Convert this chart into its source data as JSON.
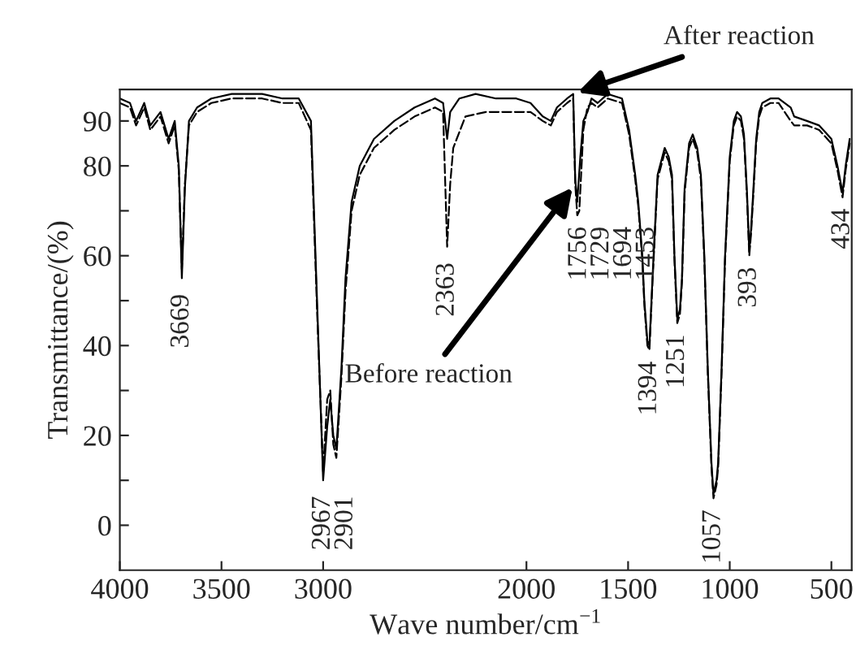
{
  "chart_data": {
    "type": "line",
    "xlabel": "Wave number/cm$^{−1}$",
    "ylabel": "Transmittance/(%)",
    "xlim": [
      4000,
      400
    ],
    "xticks": [
      4000,
      3500,
      3000,
      2000,
      1500,
      1000,
      500
    ],
    "ylim": [
      -10,
      97
    ],
    "yticks": [
      0,
      {
        "value": 10,
        "label": null
      },
      20,
      {
        "value": 30,
        "label": null
      },
      40,
      {
        "value": 50,
        "label": null
      },
      60,
      {
        "value": 70,
        "label": null
      },
      80,
      90
    ],
    "grid": false,
    "legend": false,
    "series": [
      {
        "color": "#000000",
        "line_style": "solid",
        "x": [
          4000,
          3950,
          3920,
          3880,
          3850,
          3800,
          3760,
          3730,
          3710,
          3695,
          3680,
          3660,
          3620,
          3550,
          3450,
          3300,
          3200,
          3120,
          3060,
          3030,
          3000,
          2980,
          2965,
          2950,
          2935,
          2910,
          2890,
          2860,
          2820,
          2750,
          2650,
          2550,
          2450,
          2410,
          2390,
          2375,
          2330,
          2250,
          2150,
          2050,
          1980,
          1920,
          1880,
          1850,
          1800,
          1770,
          1760,
          1750,
          1735,
          1720,
          1700,
          1680,
          1650,
          1600,
          1530,
          1495,
          1465,
          1450,
          1430,
          1420,
          1405,
          1395,
          1380,
          1355,
          1320,
          1300,
          1284,
          1272,
          1258,
          1245,
          1235,
          1222,
          1200,
          1182,
          1160,
          1142,
          1125,
          1108,
          1090,
          1080,
          1065,
          1057,
          1040,
          1023,
          1000,
          980,
          964,
          945,
          930,
          915,
          904,
          895,
          886,
          870,
          855,
          840,
          800,
          760,
          700,
          683,
          620,
          560,
          500,
          470,
          445,
          430,
          410
        ],
        "values": [
          95,
          94,
          90,
          94,
          89,
          92,
          86,
          90,
          80,
          55,
          75,
          90,
          93,
          95,
          96,
          96,
          95,
          95,
          90,
          50,
          10,
          22,
          28,
          20,
          17,
          35,
          55,
          72,
          80,
          86,
          90,
          93,
          95,
          94,
          86,
          92,
          95,
          96,
          95,
          95,
          94,
          91,
          90,
          93,
          95,
          96,
          77,
          72,
          82,
          90,
          92,
          95,
          94,
          96,
          95,
          88,
          78,
          72,
          60,
          50,
          41,
          40,
          55,
          78,
          84,
          82,
          78,
          60,
          46,
          48,
          55,
          75,
          85,
          87,
          84,
          78,
          60,
          35,
          14,
          7,
          10,
          14,
          35,
          60,
          82,
          90,
          92,
          91,
          87,
          74,
          61,
          66,
          73,
          86,
          92,
          94,
          95,
          95,
          93,
          91,
          90,
          89,
          86,
          80,
          74,
          80,
          86
        ]
      },
      {
        "color": "#000000",
        "line_style": "dashed",
        "x": [
          4000,
          3950,
          3920,
          3880,
          3850,
          3800,
          3760,
          3730,
          3710,
          3695,
          3680,
          3660,
          3620,
          3550,
          3450,
          3300,
          3200,
          3120,
          3060,
          3030,
          3000,
          2980,
          2965,
          2950,
          2935,
          2910,
          2890,
          2860,
          2820,
          2750,
          2650,
          2550,
          2450,
          2410,
          2390,
          2375,
          2360,
          2300,
          2200,
          2050,
          1980,
          1920,
          1880,
          1850,
          1800,
          1770,
          1760,
          1750,
          1740,
          1720,
          1700,
          1680,
          1650,
          1600,
          1530,
          1495,
          1465,
          1450,
          1430,
          1420,
          1405,
          1395,
          1380,
          1355,
          1320,
          1300,
          1284,
          1272,
          1258,
          1245,
          1235,
          1222,
          1200,
          1182,
          1160,
          1142,
          1125,
          1108,
          1090,
          1080,
          1065,
          1057,
          1040,
          1023,
          1000,
          980,
          964,
          945,
          930,
          915,
          904,
          895,
          886,
          870,
          855,
          840,
          800,
          760,
          700,
          683,
          620,
          560,
          500,
          470,
          445,
          430,
          410
        ],
        "values": [
          94,
          93,
          89,
          93,
          88,
          91,
          85,
          89,
          79,
          57,
          76,
          89,
          92,
          94,
          95,
          95,
          94,
          94,
          88,
          48,
          12,
          28,
          30,
          18,
          15,
          33,
          52,
          70,
          78,
          84,
          88,
          91,
          93,
          92,
          62,
          76,
          84,
          91,
          92,
          92,
          92,
          90,
          89,
          92,
          94,
          95,
          76,
          69,
          70,
          88,
          93,
          94,
          93,
          95,
          94,
          87,
          77,
          71,
          59,
          49,
          40,
          39,
          54,
          77,
          83,
          81,
          77,
          59,
          45,
          47,
          54,
          74,
          84,
          86,
          83,
          77,
          59,
          34,
          13,
          6,
          9,
          13,
          34,
          59,
          81,
          89,
          91,
          90,
          86,
          73,
          60,
          65,
          72,
          85,
          91,
          93,
          94,
          94,
          90,
          89,
          89,
          88,
          85,
          79,
          73,
          79,
          85
        ]
      }
    ],
    "annotations": [
      {
        "text": "After reaction",
        "x": 1770,
        "y": 96
      },
      {
        "text": "Before reaction",
        "x": 1760,
        "y": 76
      },
      {
        "text": "3669",
        "x": 3695,
        "y": 55
      },
      {
        "text": "2967",
        "x": 3000,
        "y": 10
      },
      "2901",
      {
        "text": "2363",
        "x": 2390,
        "y": 62
      },
      {
        "text": "1756",
        "x": 1740,
        "y": 70
      },
      "1729",
      "1694",
      "1453",
      {
        "text": "1394",
        "x": 1395,
        "y": 40
      },
      {
        "text": "1251",
        "x": 1258,
        "y": 46
      },
      {
        "text": "1057",
        "x": 1080,
        "y": 7
      },
      {
        "text": "393",
        "x": 904,
        "y": 61
      },
      {
        "text": "434",
        "x": 445,
        "y": 74
      }
    ]
  }
}
